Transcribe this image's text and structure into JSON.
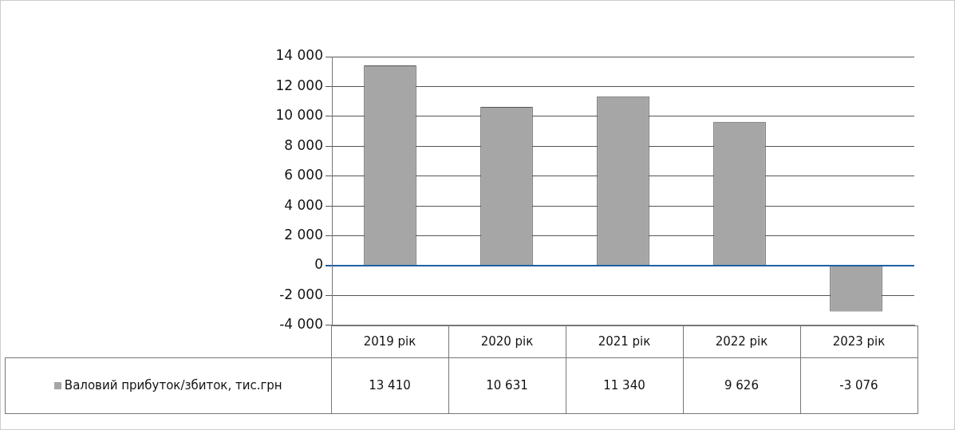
{
  "chart_data": {
    "type": "bar",
    "categories": [
      "2019 рік",
      "2020 рік",
      "2021 рік",
      "2022 рік",
      "2023 рік"
    ],
    "series": [
      {
        "name": "Валовий прибуток/збиток, тис.грн",
        "color": "#a6a6a6",
        "values": [
          13410,
          10631,
          11340,
          9626,
          -3076
        ],
        "value_labels": [
          "13 410",
          "10 631",
          "11 340",
          "9 626",
          "-3 076"
        ]
      }
    ],
    "ylim": [
      -4000,
      14000
    ],
    "yticks": [
      {
        "value": -4000,
        "label": "-4 000"
      },
      {
        "value": -2000,
        "label": "-2 000"
      },
      {
        "value": 0,
        "label": "0"
      },
      {
        "value": 2000,
        "label": "2 000"
      },
      {
        "value": 4000,
        "label": "4 000"
      },
      {
        "value": 6000,
        "label": "6 000"
      },
      {
        "value": 8000,
        "label": "8 000"
      },
      {
        "value": 10000,
        "label": "10 000"
      },
      {
        "value": 12000,
        "label": "12 000"
      },
      {
        "value": 14000,
        "label": "14 000"
      }
    ],
    "ref_lines": [
      {
        "axis": "y",
        "value": 0,
        "color": "#1f5fa8"
      }
    ],
    "grid": "y",
    "legend": "bottom"
  }
}
